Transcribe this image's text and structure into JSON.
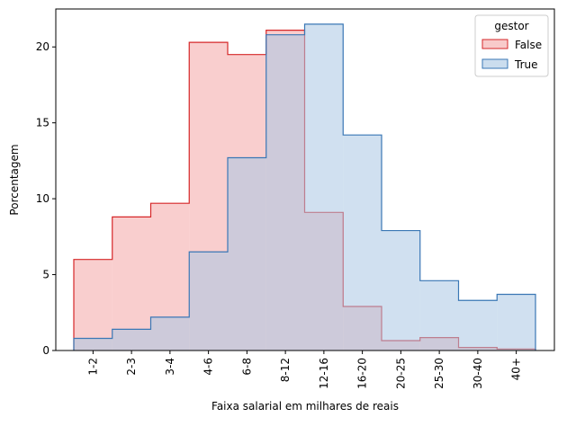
{
  "chart_data": {
    "type": "histogram-step",
    "xlabel": "Faixa salarial em milhares de reais",
    "ylabel": "Porcentagem",
    "categories": [
      "1-2",
      "2-3",
      "3-4",
      "4-6",
      "6-8",
      "8-12",
      "12-16",
      "16-20",
      "20-25",
      "25-30",
      "30-40",
      "40+"
    ],
    "ylim": [
      0,
      22.5
    ],
    "yticks": [
      0,
      5,
      10,
      15,
      20
    ],
    "legend": {
      "title": "gestor",
      "placement": "top-right"
    },
    "series": [
      {
        "name": "False",
        "fill": "#f4a6a6",
        "stroke": "#d62728",
        "values": [
          6.0,
          8.8,
          9.7,
          20.3,
          19.5,
          21.1,
          9.1,
          2.9,
          0.65,
          0.85,
          0.2,
          0.1
        ]
      },
      {
        "name": "True",
        "fill": "#a9c6e3",
        "stroke": "#3a77b5",
        "values": [
          0.8,
          1.4,
          2.2,
          6.5,
          12.7,
          20.8,
          21.5,
          14.2,
          7.9,
          4.6,
          3.3,
          3.7
        ]
      }
    ]
  }
}
